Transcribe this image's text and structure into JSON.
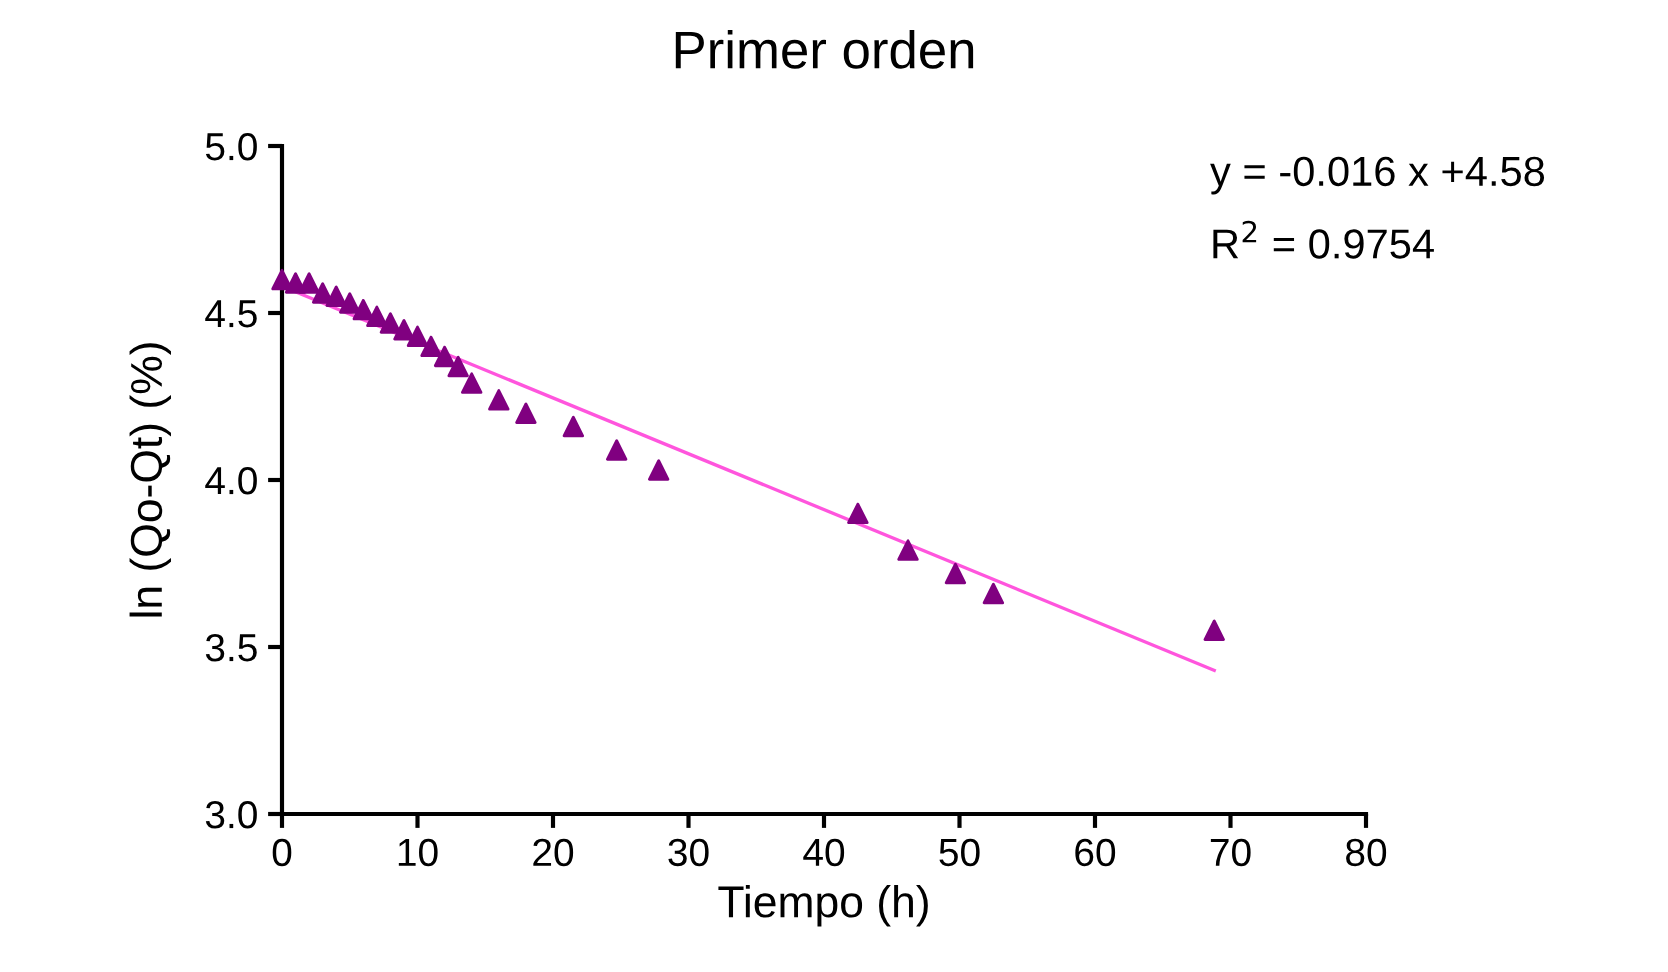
{
  "chart_data": {
    "type": "scatter",
    "title": "Primer orden",
    "xlabel": "Tiempo (h)",
    "ylabel": "ln (Qo-Qt) (%)",
    "series": [
      {
        "color": "#800080",
        "marker": "triangle",
        "x": [
          0,
          1,
          2,
          3,
          4,
          5,
          6,
          7,
          8,
          9,
          10,
          11,
          12,
          13,
          14,
          16,
          18,
          21.5,
          24.7,
          27.8,
          42.5,
          46.2,
          49.7,
          52.5,
          68.8
        ],
        "values": [
          4.6,
          4.59,
          4.59,
          4.56,
          4.55,
          4.53,
          4.51,
          4.49,
          4.47,
          4.45,
          4.43,
          4.4,
          4.37,
          4.34,
          4.29,
          4.24,
          4.2,
          4.16,
          4.09,
          4.03,
          3.9,
          3.79,
          3.72,
          3.66,
          3.55
        ]
      },
      {
        "type": "line",
        "color": "#ff55dd",
        "marker": "none",
        "line_style": "solid",
        "x": [
          0,
          68.8
        ],
        "values": [
          4.58,
          3.43
        ]
      }
    ],
    "annotations": [
      "y = -0.016 x +4.58",
      "R$^{2}$ = 0.9754"
    ],
    "xlim": [
      0,
      80
    ],
    "xticks": [
      0,
      10,
      20,
      30,
      40,
      50,
      60,
      70,
      80
    ],
    "ylim": [
      3.0,
      5.0
    ],
    "yticks": [
      {
        "value": 3.0,
        "label": "3.0"
      },
      {
        "value": 3.5,
        "label": "3.5"
      },
      {
        "value": 4.0,
        "label": "4.0"
      },
      {
        "value": 4.5,
        "label": "4.5"
      },
      {
        "value": 5.0,
        "label": "5.0"
      }
    ],
    "grid": false,
    "legend": false
  }
}
